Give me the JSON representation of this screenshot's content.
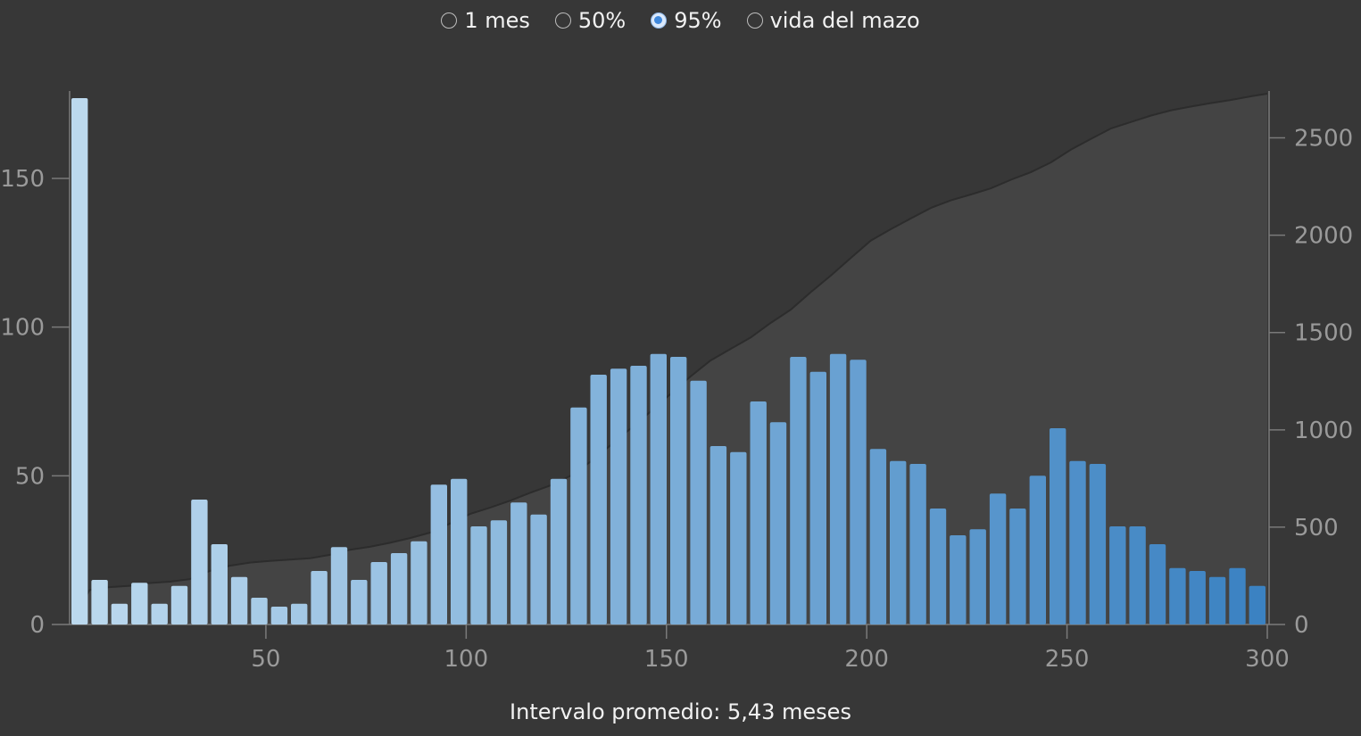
{
  "radio_options": [
    {
      "label": "1 mes",
      "checked": false
    },
    {
      "label": "50%",
      "checked": false
    },
    {
      "label": "95%",
      "checked": true
    },
    {
      "label": "vida del mazo",
      "checked": false
    }
  ],
  "footer": {
    "label": "Intervalo promedio:",
    "value": "5,43 meses"
  },
  "colors": {
    "background": "#373737",
    "cumulative_fill": "#444444",
    "bar_light": "#bcd9ee",
    "bar_dark": "#3b82c2",
    "axis": "#7a7a7a"
  },
  "chart_data": {
    "type": "bar",
    "x_range": [
      1,
      300
    ],
    "x_ticks": [
      50,
      100,
      150,
      200,
      250,
      300
    ],
    "y_left_range": [
      0,
      180
    ],
    "y_left_ticks": [
      0,
      50,
      100,
      150
    ],
    "y_right_range": [
      0,
      2750
    ],
    "y_right_ticks": [
      0,
      500,
      1000,
      1500,
      2000,
      2500
    ],
    "bin_width": 5,
    "bars_x_start": [
      1,
      6,
      11,
      16,
      21,
      26,
      31,
      36,
      41,
      46,
      51,
      56,
      61,
      66,
      71,
      76,
      81,
      86,
      91,
      96,
      101,
      106,
      111,
      116,
      121,
      126,
      131,
      136,
      141,
      146,
      151,
      156,
      161,
      166,
      171,
      176,
      181,
      186,
      191,
      196,
      201,
      206,
      211,
      216,
      221,
      226,
      231,
      236,
      241,
      246,
      251,
      256,
      261,
      266,
      271,
      276,
      281,
      286,
      291,
      296
    ],
    "bars": [
      177,
      15,
      7,
      14,
      7,
      13,
      42,
      27,
      16,
      9,
      6,
      7,
      18,
      26,
      15,
      21,
      24,
      28,
      47,
      49,
      33,
      35,
      41,
      37,
      49,
      73,
      84,
      86,
      87,
      91,
      90,
      82,
      60,
      58,
      75,
      68,
      90,
      85,
      91,
      89,
      59,
      55,
      54,
      39,
      30,
      32,
      44,
      39,
      50,
      66,
      55,
      54,
      33,
      33,
      27,
      19,
      18,
      16,
      19,
      13
    ],
    "cumulative_line": {
      "x": [
        1,
        6,
        11,
        16,
        21,
        26,
        31,
        36,
        41,
        46,
        51,
        56,
        61,
        66,
        71,
        76,
        81,
        86,
        91,
        96,
        101,
        106,
        111,
        116,
        121,
        126,
        131,
        136,
        141,
        146,
        151,
        156,
        161,
        166,
        171,
        176,
        181,
        186,
        191,
        196,
        201,
        206,
        211,
        216,
        221,
        226,
        231,
        236,
        241,
        246,
        251,
        256,
        261,
        266,
        271,
        276,
        281,
        286,
        291,
        296,
        300
      ],
      "y": [
        0,
        177,
        192,
        199,
        213,
        220,
        233,
        275,
        302,
        318,
        327,
        333,
        340,
        358,
        384,
        399,
        420,
        444,
        472,
        519,
        568,
        601,
        636,
        677,
        714,
        763,
        836,
        920,
        1006,
        1093,
        1184,
        1274,
        1356,
        1416,
        1474,
        1549,
        1617,
        1707,
        1792,
        1883,
        1972,
        2031,
        2086,
        2140,
        2179,
        2209,
        2241,
        2285,
        2324,
        2374,
        2440,
        2495,
        2549,
        2582,
        2615,
        2642,
        2661,
        2679,
        2695,
        2714,
        2727
      ]
    }
  }
}
